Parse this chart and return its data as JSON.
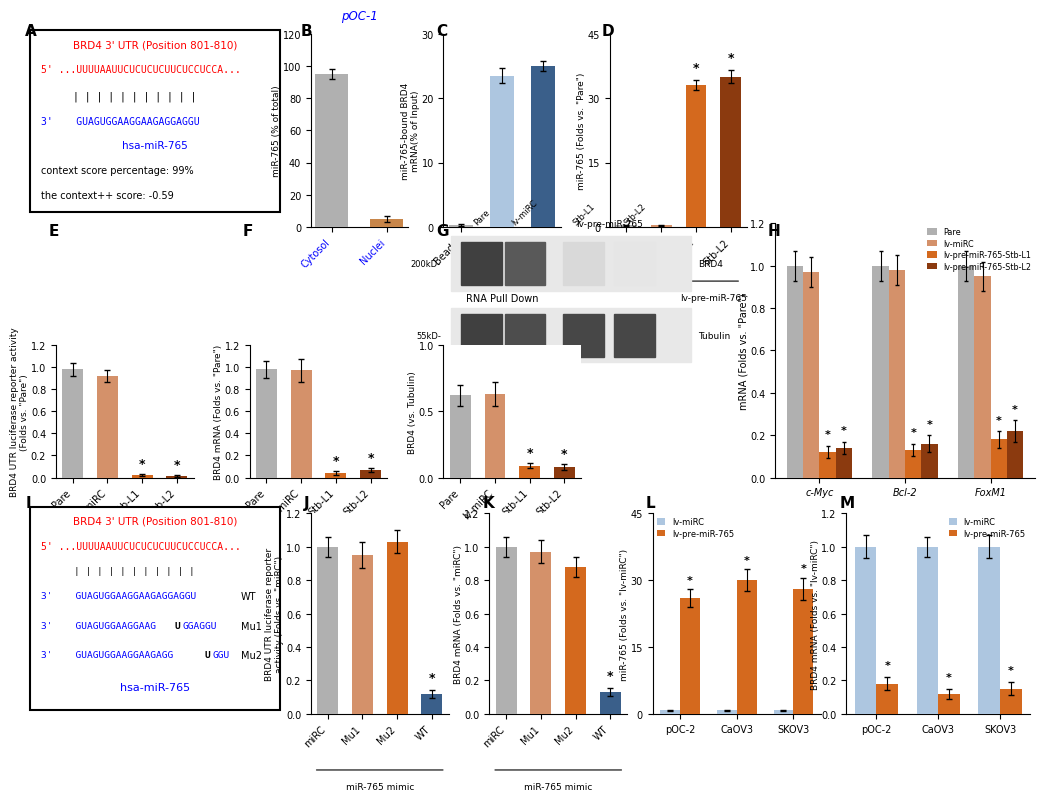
{
  "panel_B": {
    "categories": [
      "Cytosol",
      "Nuclei"
    ],
    "values": [
      95,
      5
    ],
    "errors": [
      3,
      2
    ],
    "colors": [
      "#b0b0b0",
      "#c8864a"
    ],
    "ylabel": "miR-765 (% of total)",
    "title": "pOC-1",
    "ylim": [
      0,
      120
    ],
    "yticks": [
      0,
      20,
      40,
      60,
      80,
      100,
      120
    ]
  },
  "panel_C": {
    "values": [
      0.3,
      23.5,
      25.0
    ],
    "errors": [
      0.15,
      1.2,
      0.8
    ],
    "colors": [
      "#b0b0b0",
      "#adc6e0",
      "#3a5f8a"
    ],
    "ylabel": "miR-765-bound BRD4\nmRNA(% of Input)",
    "xlabel": "RNA Pull Down",
    "ylim": [
      0,
      30
    ],
    "yticks": [
      0,
      10,
      20,
      30
    ]
  },
  "panel_D": {
    "categories": [
      "Pare",
      "lv-miRC",
      "Stb-L1",
      "Stb-L2"
    ],
    "values": [
      0.4,
      0.4,
      33,
      35
    ],
    "errors": [
      0.15,
      0.15,
      1.2,
      1.5
    ],
    "colors": [
      "#b0b0b0",
      "#d4916a",
      "#d4691e",
      "#8b3a0f"
    ],
    "ylabel": "miR-765 (Folds vs. \"Pare\")",
    "ylim": [
      0,
      45
    ],
    "yticks": [
      0,
      15,
      30,
      45
    ],
    "stars": [
      false,
      false,
      true,
      true
    ]
  },
  "panel_E": {
    "categories": [
      "Pare",
      "lv-miRC",
      "Stb-L1",
      "Stb-L2"
    ],
    "values": [
      0.98,
      0.92,
      0.02,
      0.015
    ],
    "errors": [
      0.06,
      0.05,
      0.008,
      0.006
    ],
    "colors": [
      "#b0b0b0",
      "#d4916a",
      "#d4691e",
      "#8b3a0f"
    ],
    "ylabel": "BRD4 UTR luciferase reporter activity\n(Folds vs. \"Pare\")",
    "ylim": [
      0,
      1.2
    ],
    "yticks": [
      0,
      0.2,
      0.4,
      0.6,
      0.8,
      1.0,
      1.2
    ],
    "stars": [
      false,
      false,
      true,
      true
    ]
  },
  "panel_F": {
    "categories": [
      "Pare",
      "lv-miRC",
      "Stb-L1",
      "Stb-L2"
    ],
    "values": [
      0.98,
      0.97,
      0.04,
      0.07
    ],
    "errors": [
      0.08,
      0.1,
      0.015,
      0.02
    ],
    "colors": [
      "#b0b0b0",
      "#d4916a",
      "#d4691e",
      "#8b3a0f"
    ],
    "ylabel": "BRD4 mRNA (Folds vs. \"Pare\")",
    "ylim": [
      0,
      1.2
    ],
    "yticks": [
      0,
      0.2,
      0.4,
      0.6,
      0.8,
      1.0,
      1.2
    ],
    "stars": [
      false,
      false,
      true,
      true
    ]
  },
  "panel_G_quant": {
    "labels": [
      "Pare",
      "lv-miRC",
      "Stb-L1",
      "Stb-L2"
    ],
    "values": [
      0.62,
      0.63,
      0.09,
      0.08
    ],
    "errors": [
      0.08,
      0.09,
      0.02,
      0.02
    ],
    "colors": [
      "#b0b0b0",
      "#d4916a",
      "#d4691e",
      "#8b3a0f"
    ],
    "ylabel": "BRD4 (vs. Tubulin)",
    "ylim": [
      0,
      1.0
    ],
    "yticks": [
      0,
      0.5,
      1.0
    ],
    "stars": [
      false,
      false,
      true,
      true
    ]
  },
  "panel_H": {
    "groups": [
      "c-Myc",
      "Bcl-2",
      "FoxM1"
    ],
    "series": [
      {
        "name": "Pare",
        "color": "#b0b0b0",
        "values": [
          1.0,
          1.0,
          1.0
        ],
        "errors": [
          0.07,
          0.07,
          0.07
        ]
      },
      {
        "name": "lv-miRC",
        "color": "#d4916a",
        "values": [
          0.97,
          0.98,
          0.95
        ],
        "errors": [
          0.07,
          0.07,
          0.07
        ]
      },
      {
        "name": "lv-pre-miR-765-Stb-L1",
        "color": "#d4691e",
        "values": [
          0.12,
          0.13,
          0.18
        ],
        "errors": [
          0.03,
          0.03,
          0.04
        ]
      },
      {
        "name": "lv-pre-miR-765-Stb-L2",
        "color": "#8b3a0f",
        "values": [
          0.14,
          0.16,
          0.22
        ],
        "errors": [
          0.03,
          0.04,
          0.05
        ]
      }
    ],
    "ylabel": "mRNA (Folds vs. \"Pare\")",
    "ylim": [
      0,
      1.2
    ],
    "yticks": [
      0,
      0.2,
      0.4,
      0.6,
      0.8,
      1.0,
      1.2
    ]
  },
  "panel_J": {
    "categories": [
      "miRC",
      "Mu1",
      "Mu2",
      "WT"
    ],
    "values": [
      1.0,
      0.95,
      1.03,
      0.12
    ],
    "errors": [
      0.06,
      0.08,
      0.07,
      0.025
    ],
    "colors": [
      "#b0b0b0",
      "#d4916a",
      "#d4691e",
      "#3a5f8a"
    ],
    "ylabel": "BRD4 UTR luciferase reporter\nactivity (Folds vs. \"miRC\")",
    "ylim": [
      0,
      1.2
    ],
    "yticks": [
      0,
      0.2,
      0.4,
      0.6,
      0.8,
      1.0,
      1.2
    ],
    "stars": [
      false,
      false,
      false,
      true
    ]
  },
  "panel_K": {
    "categories": [
      "miRC",
      "Mu1",
      "Mu2",
      "WT"
    ],
    "values": [
      1.0,
      0.97,
      0.88,
      0.13
    ],
    "errors": [
      0.06,
      0.07,
      0.06,
      0.025
    ],
    "colors": [
      "#b0b0b0",
      "#d4916a",
      "#d4691e",
      "#3a5f8a"
    ],
    "ylabel": "BRD4 mRNA (Folds vs. \"miRC\")",
    "ylim": [
      0,
      1.2
    ],
    "yticks": [
      0,
      0.2,
      0.4,
      0.6,
      0.8,
      1.0,
      1.2
    ],
    "stars": [
      false,
      false,
      false,
      true
    ]
  },
  "panel_L": {
    "groups": [
      "pOC-2",
      "CaOV3",
      "SKOV3"
    ],
    "series": [
      {
        "name": "lv-miRC",
        "color": "#adc6e0",
        "values": [
          0.8,
          0.8,
          0.8
        ],
        "errors": [
          0.07,
          0.07,
          0.07
        ]
      },
      {
        "name": "lv-pre-miR-765",
        "color": "#d4691e",
        "values": [
          26,
          30,
          28
        ],
        "errors": [
          2.0,
          2.5,
          2.5
        ]
      }
    ],
    "ylabel": "miR-765 (Folds vs. \"lv-miRC\")",
    "ylim": [
      0,
      45
    ],
    "yticks": [
      0,
      15,
      30,
      45
    ],
    "stars": [
      true,
      true,
      true
    ]
  },
  "panel_M": {
    "groups": [
      "pOC-2",
      "CaOV3",
      "SKOV3"
    ],
    "series": [
      {
        "name": "lv-miRC",
        "color": "#adc6e0",
        "values": [
          1.0,
          1.0,
          1.0
        ],
        "errors": [
          0.07,
          0.06,
          0.07
        ]
      },
      {
        "name": "lv-pre-miR-765",
        "color": "#d4691e",
        "values": [
          0.18,
          0.12,
          0.15
        ],
        "errors": [
          0.04,
          0.03,
          0.04
        ]
      }
    ],
    "ylabel": "BRD4 mRNA (Folds vs. \"lv-miRC\")",
    "ylim": [
      0,
      1.2
    ],
    "yticks": [
      0,
      0.2,
      0.4,
      0.6,
      0.8,
      1.0,
      1.2
    ],
    "stars": [
      true,
      true,
      true
    ]
  }
}
